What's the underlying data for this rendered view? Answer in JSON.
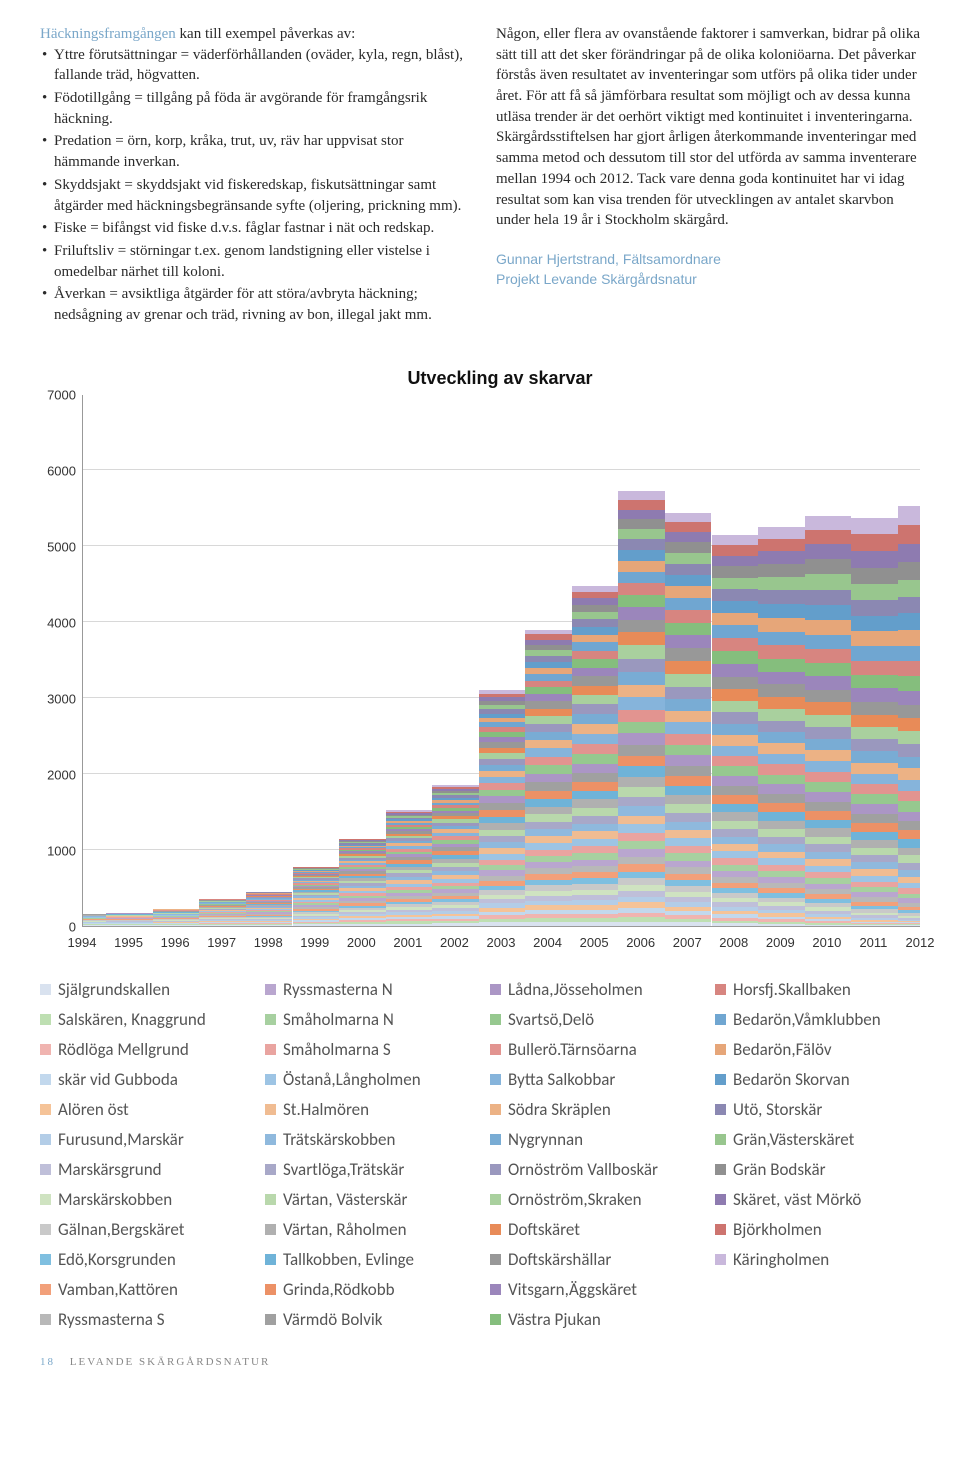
{
  "text": {
    "lead": "Häckningsframgången",
    "lead_rest": " kan till exempel påverkas av:",
    "bullets": [
      "Yttre förutsättningar = väderförhållanden (oväder, kyla, regn, blåst), fallande träd, högvatten.",
      "Födotillgång = tillgång på föda är avgörande för framgångsrik häckning.",
      "Predation = örn, korp, kråka, trut, uv, räv har uppvisat stor hämmande inverkan.",
      "Skyddsjakt = skyddsjakt vid fiskeredskap, fiskutsättningar samt åtgärder med häckningsbegränsande syfte (oljering, prickning mm).",
      "Fiske = bifångst vid fiske d.v.s. fåglar fastnar i nät och redskap.",
      "Friluftsliv = störningar t.ex. genom landstigning eller vistelse i omedelbar närhet till koloni.",
      "Åverkan = avsiktliga åtgärder för att störa/avbryta häckning; nedsågning av grenar och träd, rivning av bon, illegal jakt mm."
    ],
    "right_para": "Någon, eller flera av ovanstående faktorer i samverkan, bidrar på olika sätt till att det sker förändringar på de olika koloniöarna. Det påverkar förstås även resultatet av inventeringar som utförs på olika tider under året. För att få så jämförbara resultat som möjligt och av dessa kunna utläsa trender är det oerhört viktigt med kontinuitet i inventeringarna. Skärgårdsstiftelsen har gjort årligen återkommande inventeringar med samma metod och dessutom till stor del utförda av samma inventerare mellan 1994 och 2012. Tack vare denna goda kontinuitet har vi idag resultat som kan visa trenden för utvecklingen av antalet skarvbon under hela 19 år i Stockholm skärgård.",
    "attribution_line1": "Gunnar Hjertstrand, Fältsamordnare",
    "attribution_line2": "Projekt Levande Skärgårdsnatur"
  },
  "chart": {
    "title": "Utveckling av skarvar",
    "type": "stacked-area",
    "ylim": [
      0,
      7000
    ],
    "ytick_step": 1000,
    "years": [
      1994,
      1995,
      1996,
      1997,
      1998,
      1999,
      2000,
      2001,
      2002,
      2003,
      2004,
      2005,
      2006,
      2007,
      2008,
      2009,
      2010,
      2011,
      2012
    ],
    "grid_color": "#d8d8d8",
    "axis_color": "#999999",
    "label_fontsize": 13,
    "title_fontsize": 18,
    "background_color": "#ffffff",
    "totals": [
      190,
      210,
      260,
      380,
      460,
      780,
      1150,
      1520,
      1850,
      3100,
      3900,
      4480,
      5720,
      5440,
      5150,
      5250,
      5400,
      5370,
      5520
    ],
    "series": [
      {
        "name": "Själgrundskallen",
        "color": "#d9e2ef"
      },
      {
        "name": "Salskären, Knaggrund",
        "color": "#bedfb2"
      },
      {
        "name": "Rödlöga Mellgrund",
        "color": "#f0b4b0"
      },
      {
        "name": "skär vid Gubboda",
        "color": "#c2d8ed"
      },
      {
        "name": "Alören öst",
        "color": "#f5c398"
      },
      {
        "name": "Furusund,Marskär",
        "color": "#b3cde7"
      },
      {
        "name": "Marskärsgrund",
        "color": "#bfbfd9"
      },
      {
        "name": "Marskärskobben",
        "color": "#cfe3c1"
      },
      {
        "name": "Gälnan,Bergskäret",
        "color": "#c9c9c9"
      },
      {
        "name": "Edö,Korsgrunden",
        "color": "#7fbfe0"
      },
      {
        "name": "Vamban,Kattören",
        "color": "#f2a07a"
      },
      {
        "name": "Ryssmasterna S",
        "color": "#b8b8b8"
      },
      {
        "name": "Ryssmasterna N",
        "color": "#b9a6cf"
      },
      {
        "name": "Småholmarna N",
        "color": "#a7d0a0"
      },
      {
        "name": "Småholmarna S",
        "color": "#e9a4a0"
      },
      {
        "name": "Östanå,Långholmen",
        "color": "#9dc4e4"
      },
      {
        "name": "St.Halmören",
        "color": "#f0bc92"
      },
      {
        "name": "Trätskärskobben",
        "color": "#8fb9dd"
      },
      {
        "name": "Svartlöga,Trätskär",
        "color": "#a8a8c8"
      },
      {
        "name": "Värtan, Västerskär",
        "color": "#b9d8ac"
      },
      {
        "name": "Värtan, Råholmen",
        "color": "#b0b0b0"
      },
      {
        "name": "Tallkobben, Evlinge",
        "color": "#6fb3d8"
      },
      {
        "name": "Grinda,Rödkobb",
        "color": "#ec9166"
      },
      {
        "name": "Värmdö Bolvik",
        "color": "#a0a0a0"
      },
      {
        "name": "Lådna,Jösseholmen",
        "color": "#ab96c5"
      },
      {
        "name": "Svartsö,Delö",
        "color": "#96c88f"
      },
      {
        "name": "Bullerö.Tärnsöarna",
        "color": "#e29490"
      },
      {
        "name": "Bytta Salkobbar",
        "color": "#86b4db"
      },
      {
        "name": "Södra Skräplen",
        "color": "#ecb285"
      },
      {
        "name": "Nygrynnan",
        "color": "#79acd4"
      },
      {
        "name": "Ornöström Vallboskär",
        "color": "#9a98be"
      },
      {
        "name": "Ornöström,Skraken",
        "color": "#a9d09e"
      },
      {
        "name": "Doftskäret",
        "color": "#e88b58"
      },
      {
        "name": "Doftskärshällar",
        "color": "#989898"
      },
      {
        "name": "Vitsgarn,Äggskäret",
        "color": "#9b86bb"
      },
      {
        "name": "Västra Pjukan",
        "color": "#85be7d"
      },
      {
        "name": "Horsfj.Skallbaken",
        "color": "#d78580"
      },
      {
        "name": "Bedarön,Våmklubben",
        "color": "#70a6d1"
      },
      {
        "name": "Bedarön,Fälöv",
        "color": "#e6a679"
      },
      {
        "name": "Bedarön Skorvan",
        "color": "#639ecb"
      },
      {
        "name": "Utö, Storskär",
        "color": "#8b88b2"
      },
      {
        "name": "Grän,Västerskäret",
        "color": "#98c68e"
      },
      {
        "name": "Grän Bodskär",
        "color": "#909090"
      },
      {
        "name": "Skäret, väst Mörkö",
        "color": "#8e7bb0"
      },
      {
        "name": "Björkholmen",
        "color": "#cd746f"
      },
      {
        "name": "Käringholmen",
        "color": "#c9b8dc"
      }
    ]
  },
  "legend_columns": [
    [
      "Själgrundskallen",
      "Salskären, Knaggrund",
      "Rödlöga Mellgrund",
      "skär vid Gubboda",
      "Alören öst",
      "Furusund,Marskär",
      "Marskärsgrund",
      "Marskärskobben",
      "Gälnan,Bergskäret",
      "Edö,Korsgrunden",
      "Vamban,Kattören",
      "Ryssmasterna S"
    ],
    [
      "Ryssmasterna N",
      "Småholmarna N",
      "Småholmarna S",
      "Östanå,Långholmen",
      "St.Halmören",
      "Trätskärskobben",
      "Svartlöga,Trätskär",
      "Värtan, Västerskär",
      "Värtan, Råholmen",
      "Tallkobben, Evlinge",
      "Grinda,Rödkobb",
      "Värmdö Bolvik"
    ],
    [
      "Lådna,Jösseholmen",
      "Svartsö,Delö",
      "Bullerö.Tärnsöarna",
      "Bytta Salkobbar",
      "Södra Skräplen",
      "Nygrynnan",
      "Ornöström Vallboskär",
      "Ornöström,Skraken",
      "Doftskäret",
      "Doftskärshällar",
      "Vitsgarn,Äggskäret",
      "Västra Pjukan"
    ],
    [
      "Horsfj.Skallbaken",
      "Bedarön,Våmklubben",
      "Bedarön,Fälöv",
      "Bedarön Skorvan",
      "Utö, Storskär",
      "Grän,Västerskäret",
      "Grän Bodskär",
      "Skäret, väst Mörkö",
      "Björkholmen",
      "Käringholmen"
    ]
  ],
  "footer": {
    "page": "18",
    "title": "LEVANDE SKÄRGÅRDSNATUR"
  }
}
